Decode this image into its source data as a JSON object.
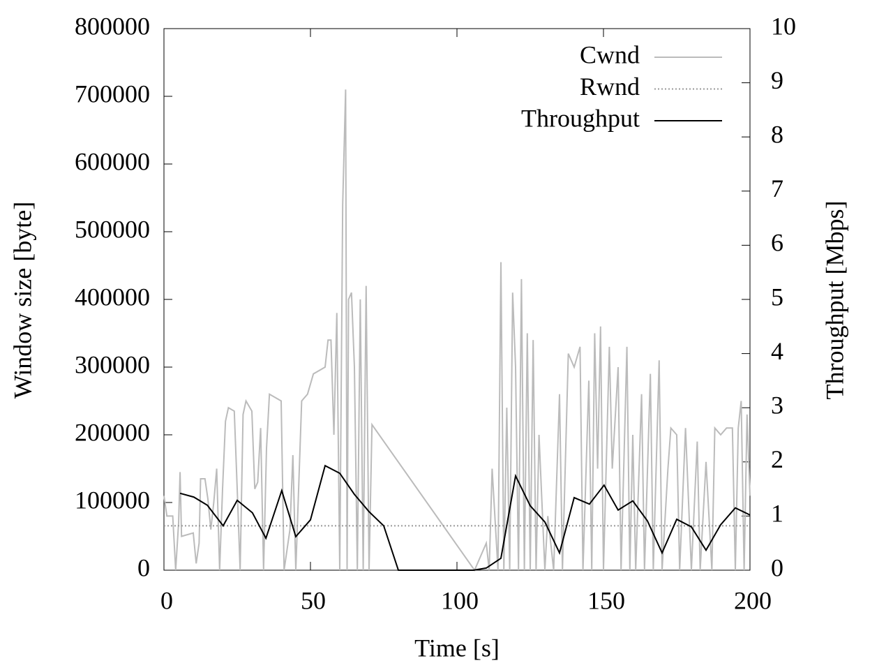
{
  "chart_data": {
    "type": "line",
    "xlabel": "Time [s]",
    "ylabel": "Window size [byte]",
    "y2label": "Throughput [Mbps]",
    "xlim": [
      0,
      200
    ],
    "xticks": [
      0,
      50,
      100,
      150,
      200
    ],
    "ylim": [
      0,
      800000
    ],
    "yticks": [
      0,
      100000,
      200000,
      300000,
      400000,
      500000,
      600000,
      700000,
      800000
    ],
    "y2lim": [
      0,
      10
    ],
    "y2ticks": [
      0,
      1,
      2,
      3,
      4,
      5,
      6,
      7,
      8,
      9,
      10
    ],
    "legend": "top-right",
    "series": [
      {
        "name": "Cwnd",
        "color": "#bbbbbb",
        "dash": "solid",
        "x": [
          0,
          1,
          3,
          4,
          5,
          5.5,
          6,
          10,
          11,
          12,
          12.5,
          14,
          15,
          16,
          17,
          18,
          19,
          20,
          21,
          22,
          24,
          25,
          26,
          27,
          28,
          30,
          31,
          32,
          33,
          34,
          35,
          36,
          38,
          40,
          41,
          43,
          44,
          45,
          47,
          49,
          51,
          53,
          55,
          56,
          57,
          58,
          59,
          60,
          61,
          62,
          62.5,
          63,
          64,
          65,
          66,
          67,
          68,
          69,
          70,
          71,
          106,
          108,
          110,
          111,
          112,
          114,
          115,
          116,
          117,
          118,
          119,
          120,
          121,
          122,
          123,
          124,
          125,
          126,
          127,
          128,
          130,
          131,
          133,
          135,
          136,
          138,
          140,
          142,
          143,
          145,
          146,
          147,
          148,
          149,
          150,
          152,
          153,
          155,
          156,
          158,
          159,
          160,
          161,
          163,
          164,
          166,
          167,
          169,
          170,
          172,
          173,
          175,
          176,
          178,
          180,
          182,
          183,
          185,
          187,
          188,
          190,
          192,
          194,
          195,
          196,
          197,
          198,
          199,
          200
        ],
        "values": [
          110000,
          80000,
          80000,
          0,
          70000,
          145000,
          50000,
          55000,
          10000,
          40000,
          135000,
          135000,
          105000,
          60000,
          100000,
          150000,
          0,
          120000,
          220000,
          240000,
          235000,
          120000,
          0,
          230000,
          250000,
          235000,
          120000,
          130000,
          210000,
          0,
          180000,
          260000,
          255000,
          250000,
          0,
          60000,
          170000,
          0,
          250000,
          260000,
          290000,
          295000,
          300000,
          340000,
          340000,
          200000,
          380000,
          0,
          540000,
          710000,
          0,
          400000,
          410000,
          300000,
          0,
          400000,
          0,
          420000,
          0,
          215000,
          0,
          20000,
          40000,
          0,
          150000,
          0,
          455000,
          0,
          240000,
          0,
          410000,
          300000,
          0,
          430000,
          0,
          350000,
          0,
          340000,
          0,
          200000,
          0,
          80000,
          0,
          260000,
          0,
          320000,
          300000,
          330000,
          0,
          280000,
          0,
          350000,
          150000,
          360000,
          0,
          330000,
          150000,
          300000,
          0,
          330000,
          0,
          200000,
          0,
          260000,
          0,
          290000,
          0,
          310000,
          0,
          150000,
          210000,
          200000,
          0,
          210000,
          0,
          190000,
          0,
          160000,
          0,
          210000,
          200000,
          210000,
          210000,
          0,
          210000,
          250000,
          0,
          230000,
          110000
        ]
      },
      {
        "name": "Rwnd",
        "color": "#999999",
        "dash": "dotted",
        "x": [
          0,
          200
        ],
        "values": [
          65536,
          65536
        ]
      },
      {
        "name": "Throughput",
        "color": "#000000",
        "dash": "solid",
        "axis": "y2",
        "x": [
          5.5,
          10.2,
          14.8,
          20.2,
          25,
          30.2,
          34.8,
          40.2,
          45,
          50,
          55,
          60,
          65,
          70,
          75,
          80,
          105.7,
          110,
          115,
          120,
          125,
          130,
          135,
          140,
          145.2,
          150.2,
          155,
          160,
          165,
          170,
          175,
          180,
          185,
          190,
          195,
          200
        ],
        "values": [
          1.42,
          1.35,
          1.2,
          0.82,
          1.29,
          1.06,
          0.59,
          1.47,
          0.62,
          0.93,
          1.93,
          1.79,
          1.4,
          1.08,
          0.82,
          0,
          0,
          0.04,
          0.22,
          1.74,
          1.19,
          0.89,
          0.32,
          1.34,
          1.22,
          1.57,
          1.11,
          1.28,
          0.91,
          0.32,
          0.94,
          0.8,
          0.37,
          0.84,
          1.15,
          1.02
        ]
      }
    ]
  }
}
